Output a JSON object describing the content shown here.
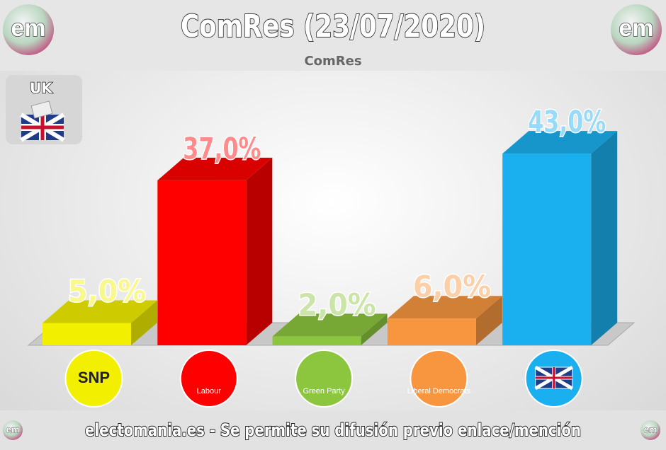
{
  "chart_data": {
    "type": "bar3d",
    "title": "ComRes (23/07/2020)",
    "subtitle": "ComRes",
    "region": "UK",
    "logo_text": "em",
    "footer": "electomania.es - Se permite su difusión previo enlace/mención",
    "categories": [
      "SNP",
      "Labour",
      "Green Party",
      "Liberal Democrats",
      null
    ],
    "values": [
      5,
      37,
      2,
      6,
      43
    ],
    "value_labels": [
      "5,0%",
      "37,0%",
      "2,0%",
      "6,0%",
      "43,0%"
    ],
    "colors": [
      "#f2f000",
      "#ff0000",
      "#8cc63f",
      "#f7963e",
      "#1ab0ef"
    ]
  }
}
